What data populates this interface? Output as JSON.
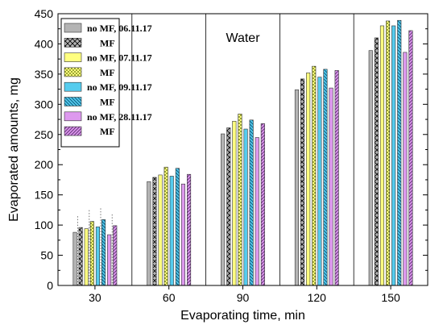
{
  "chart_data": {
    "type": "bar",
    "title": "",
    "annotation": "Water",
    "xlabel": "Evaporating time, min",
    "ylabel": "Evaporated amounts, mg",
    "categories": [
      "30",
      "60",
      "90",
      "120",
      "150"
    ],
    "ylim": [
      0,
      450
    ],
    "yticks": [
      0,
      50,
      100,
      150,
      200,
      250,
      300,
      350,
      400,
      450
    ],
    "legend_position": "top-left",
    "series": [
      {
        "name": "no MF, 06.11.17",
        "values": [
          88,
          172,
          251,
          324,
          389
        ],
        "color": "#b4b4b4",
        "pattern": "solid"
      },
      {
        "name": "MF",
        "values": [
          96,
          179,
          261,
          342,
          410
        ],
        "color": "#b4b4b4",
        "pattern": "crosshatch"
      },
      {
        "name": "no MF, 07.11.17",
        "values": [
          94,
          183,
          272,
          352,
          430
        ],
        "color": "#ffff80",
        "pattern": "solid"
      },
      {
        "name": "MF",
        "values": [
          106,
          196,
          284,
          363,
          438
        ],
        "color": "#ffff80",
        "pattern": "dots"
      },
      {
        "name": "no MF, 09.11.17",
        "values": [
          97,
          181,
          259,
          345,
          430
        ],
        "color": "#55ccee",
        "pattern": "solid"
      },
      {
        "name": "MF",
        "values": [
          109,
          194,
          274,
          358,
          439
        ],
        "color": "#55ccee",
        "pattern": "diag-back"
      },
      {
        "name": "no MF, 28.11.17",
        "values": [
          84,
          168,
          245,
          327,
          386
        ],
        "color": "#dd99ee",
        "pattern": "solid"
      },
      {
        "name": "MF",
        "values": [
          99,
          184,
          268,
          356,
          422
        ],
        "color": "#dd99ee",
        "pattern": "diag-fwd"
      }
    ],
    "grid": false,
    "dotted_guides_group": "30"
  }
}
